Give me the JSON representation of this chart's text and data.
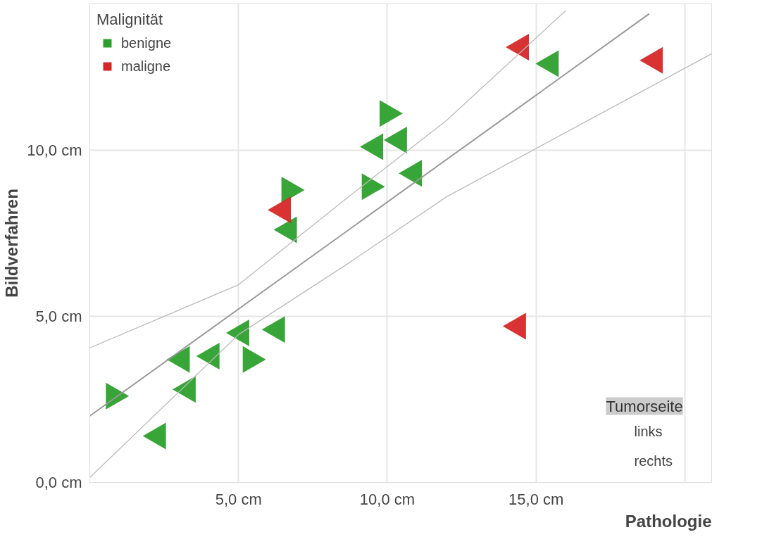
{
  "chart_data": {
    "type": "scatter",
    "xlabel": "Pathologie",
    "ylabel": "Bildverfahren",
    "legend_title": "Malignität",
    "legend": "top left",
    "grid": true,
    "xlim": [
      0,
      20.9
    ],
    "ylim": [
      0,
      14.4
    ],
    "xticks": [
      {
        "value": 0,
        "label": null
      },
      {
        "value": 5,
        "label": "5,0 cm"
      },
      {
        "value": 10,
        "label": "10,0 cm"
      },
      {
        "value": 15,
        "label": "15,0 cm"
      },
      {
        "value": 20,
        "label": null
      }
    ],
    "yticks": [
      {
        "value": 0,
        "label": "0,0 cm"
      },
      {
        "value": 5,
        "label": "5,0 cm"
      },
      {
        "value": 10,
        "label": "10,0 cm"
      }
    ],
    "annotations": [
      "Tumorseite",
      "links",
      "rechts"
    ],
    "series": [
      {
        "name": "benigne",
        "color": "#2ca02c",
        "marker": "triangle_left",
        "x": [
          15.5,
          10.4,
          9.6,
          10.9,
          6.7,
          5.1,
          6.3,
          3.1,
          4.1,
          3.3,
          2.3
        ],
        "values": [
          12.6,
          10.3,
          10.1,
          9.3,
          7.6,
          4.5,
          4.6,
          3.7,
          3.8,
          2.8,
          1.4
        ]
      },
      {
        "color": "#2ca02c",
        "marker": "triangle_right",
        "x": [
          10.0,
          9.4,
          6.7,
          5.4,
          0.8
        ],
        "values": [
          11.1,
          8.9,
          8.8,
          3.7,
          2.6
        ]
      },
      {
        "name": "maligne",
        "color": "#d62728",
        "marker": "triangle_left",
        "x": [
          14.5,
          19.0,
          14.4,
          6.5
        ],
        "values": [
          13.1,
          12.7,
          4.7,
          8.2
        ]
      },
      {
        "type": "line",
        "color": "#999999",
        "x": [
          0,
          18.8
        ],
        "values": [
          2.0,
          14.1
        ]
      },
      {
        "type": "line",
        "color": "#bbbbbb",
        "x": [
          0,
          5,
          8.7,
          12,
          16
        ],
        "values": [
          4.05,
          5.95,
          8.6,
          10.9,
          14.2
        ]
      },
      {
        "type": "line",
        "color": "#bbbbbb",
        "x": [
          0,
          5,
          8.7,
          12,
          20.9
        ],
        "values": [
          0.15,
          4.45,
          6.6,
          8.6,
          12.9
        ]
      }
    ]
  }
}
